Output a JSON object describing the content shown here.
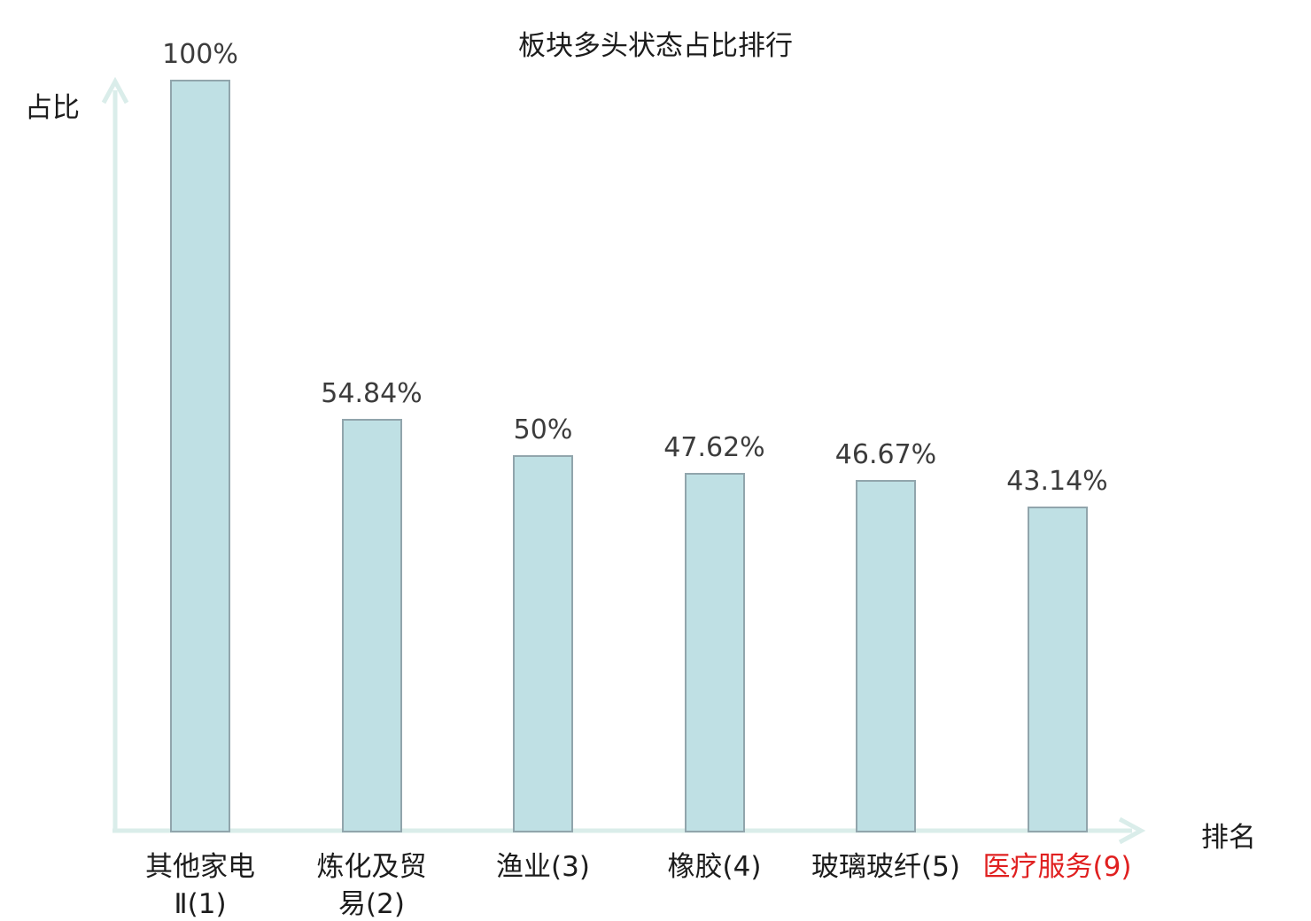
{
  "chart_data": {
    "type": "bar",
    "title": "板块多头状态占比排行",
    "xlabel": "排名",
    "ylabel": "占比",
    "categories": [
      "其他家电Ⅱ(1)",
      "炼化及贸易(2)",
      "渔业(3)",
      "橡胶(4)",
      "玻璃玻纤(5)",
      "医疗服务(9)"
    ],
    "category_lines": [
      [
        "其他家电",
        "Ⅱ(1)"
      ],
      [
        "炼化及贸",
        "易(2)"
      ],
      [
        "渔业(3)"
      ],
      [
        "橡胶(4)"
      ],
      [
        "玻璃玻纤(5)"
      ],
      [
        "医疗服务(9)"
      ]
    ],
    "values": [
      100,
      54.84,
      50,
      47.62,
      46.67,
      43.14
    ],
    "value_labels": [
      "100%",
      "54.84%",
      "50%",
      "47.62%",
      "46.67%",
      "43.14%"
    ],
    "highlighted_index": 5,
    "ylim": [
      0,
      100
    ],
    "grid": false,
    "legend": null,
    "colors": {
      "bar_fill": "#bfe0e4",
      "bar_border": "#91a5ac",
      "axis": "#daedea",
      "value_label": "#3c3c3c",
      "category_label": "#1c1c1c",
      "highlight": "#e02020",
      "background": "#ffffff"
    }
  }
}
